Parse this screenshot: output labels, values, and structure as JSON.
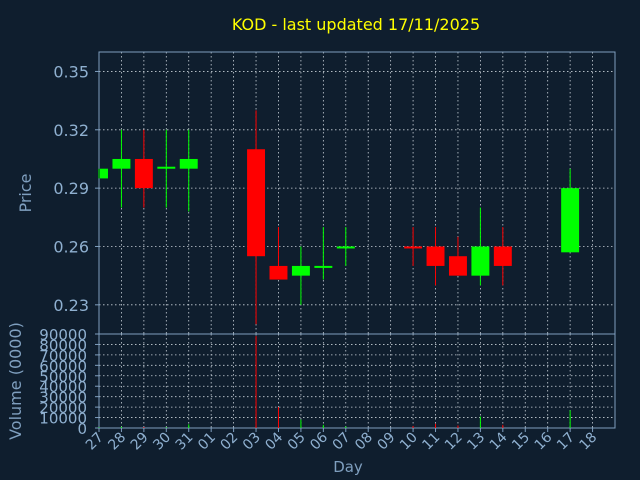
{
  "chart_data": {
    "type": "candlestick",
    "title": "KOD - last updated 17/11/2025",
    "price_panel": {
      "ylabel": "Price",
      "ylim": [
        0.215,
        0.36
      ],
      "yticks": [
        0.23,
        0.26,
        0.29,
        0.32,
        0.35
      ],
      "ytick_labels": [
        "0.23",
        "0.26",
        "0.29",
        "0.32",
        "0.35"
      ],
      "grid": true
    },
    "volume_panel": {
      "ylabel": "Volume (0000)",
      "ylim": [
        0,
        90000
      ],
      "yticks": [
        0,
        10000,
        20000,
        30000,
        40000,
        50000,
        60000,
        70000,
        80000,
        90000
      ],
      "ytick_labels": [
        "0",
        "10000",
        "20000",
        "30000",
        "40000",
        "50000",
        "60000",
        "70000",
        "80000",
        "90000"
      ],
      "grid": true
    },
    "xlabel": "Day",
    "x_tick_labels": [
      "27",
      "28",
      "29",
      "30",
      "31",
      "01",
      "02",
      "03",
      "04",
      "05",
      "06",
      "07",
      "08",
      "09",
      "10",
      "11",
      "12",
      "13",
      "14",
      "15",
      "16",
      "17",
      "18"
    ],
    "candles": [
      {
        "day": "27",
        "open": 0.295,
        "high": 0.3,
        "low": 0.295,
        "close": 0.3,
        "volume": 600
      },
      {
        "day": "28",
        "open": 0.3,
        "high": 0.32,
        "low": 0.28,
        "close": 0.305,
        "volume": 1200
      },
      {
        "day": "29",
        "open": 0.305,
        "high": 0.32,
        "low": 0.28,
        "close": 0.29,
        "volume": 900
      },
      {
        "day": "30",
        "open": 0.3,
        "high": 0.32,
        "low": 0.28,
        "close": 0.301,
        "volume": 700
      },
      {
        "day": "31",
        "open": 0.3,
        "high": 0.32,
        "low": 0.278,
        "close": 0.305,
        "volume": 3500
      },
      {
        "day": "03",
        "open": 0.31,
        "high": 0.33,
        "low": 0.22,
        "close": 0.255,
        "volume": 88000
      },
      {
        "day": "04",
        "open": 0.25,
        "high": 0.27,
        "low": 0.243,
        "close": 0.243,
        "volume": 20000
      },
      {
        "day": "05",
        "open": 0.245,
        "high": 0.26,
        "low": 0.23,
        "close": 0.25,
        "volume": 8000
      },
      {
        "day": "06",
        "open": 0.249,
        "high": 0.27,
        "low": 0.243,
        "close": 0.25,
        "volume": 3000
      },
      {
        "day": "07",
        "open": 0.259,
        "high": 0.27,
        "low": 0.25,
        "close": 0.26,
        "volume": 1500
      },
      {
        "day": "10",
        "open": 0.26,
        "high": 0.27,
        "low": 0.25,
        "close": 0.259,
        "volume": 2000
      },
      {
        "day": "11",
        "open": 0.26,
        "high": 0.27,
        "low": 0.24,
        "close": 0.25,
        "volume": 4000
      },
      {
        "day": "12",
        "open": 0.255,
        "high": 0.265,
        "low": 0.245,
        "close": 0.245,
        "volume": 2500
      },
      {
        "day": "13",
        "open": 0.245,
        "high": 0.28,
        "low": 0.24,
        "close": 0.26,
        "volume": 11000
      },
      {
        "day": "14",
        "open": 0.26,
        "high": 0.27,
        "low": 0.24,
        "close": 0.25,
        "volume": 3000
      },
      {
        "day": "17",
        "open": 0.257,
        "high": 0.3,
        "low": 0.257,
        "close": 0.29,
        "volume": 17000
      }
    ],
    "colors": {
      "background": "#0f1e2e",
      "axis": "#7f9fbf",
      "tick_text": "#8fb0d0",
      "title": "#ffff00",
      "up": "#00ff00",
      "down": "#ff0000",
      "grid": "#c8d0d8"
    }
  }
}
